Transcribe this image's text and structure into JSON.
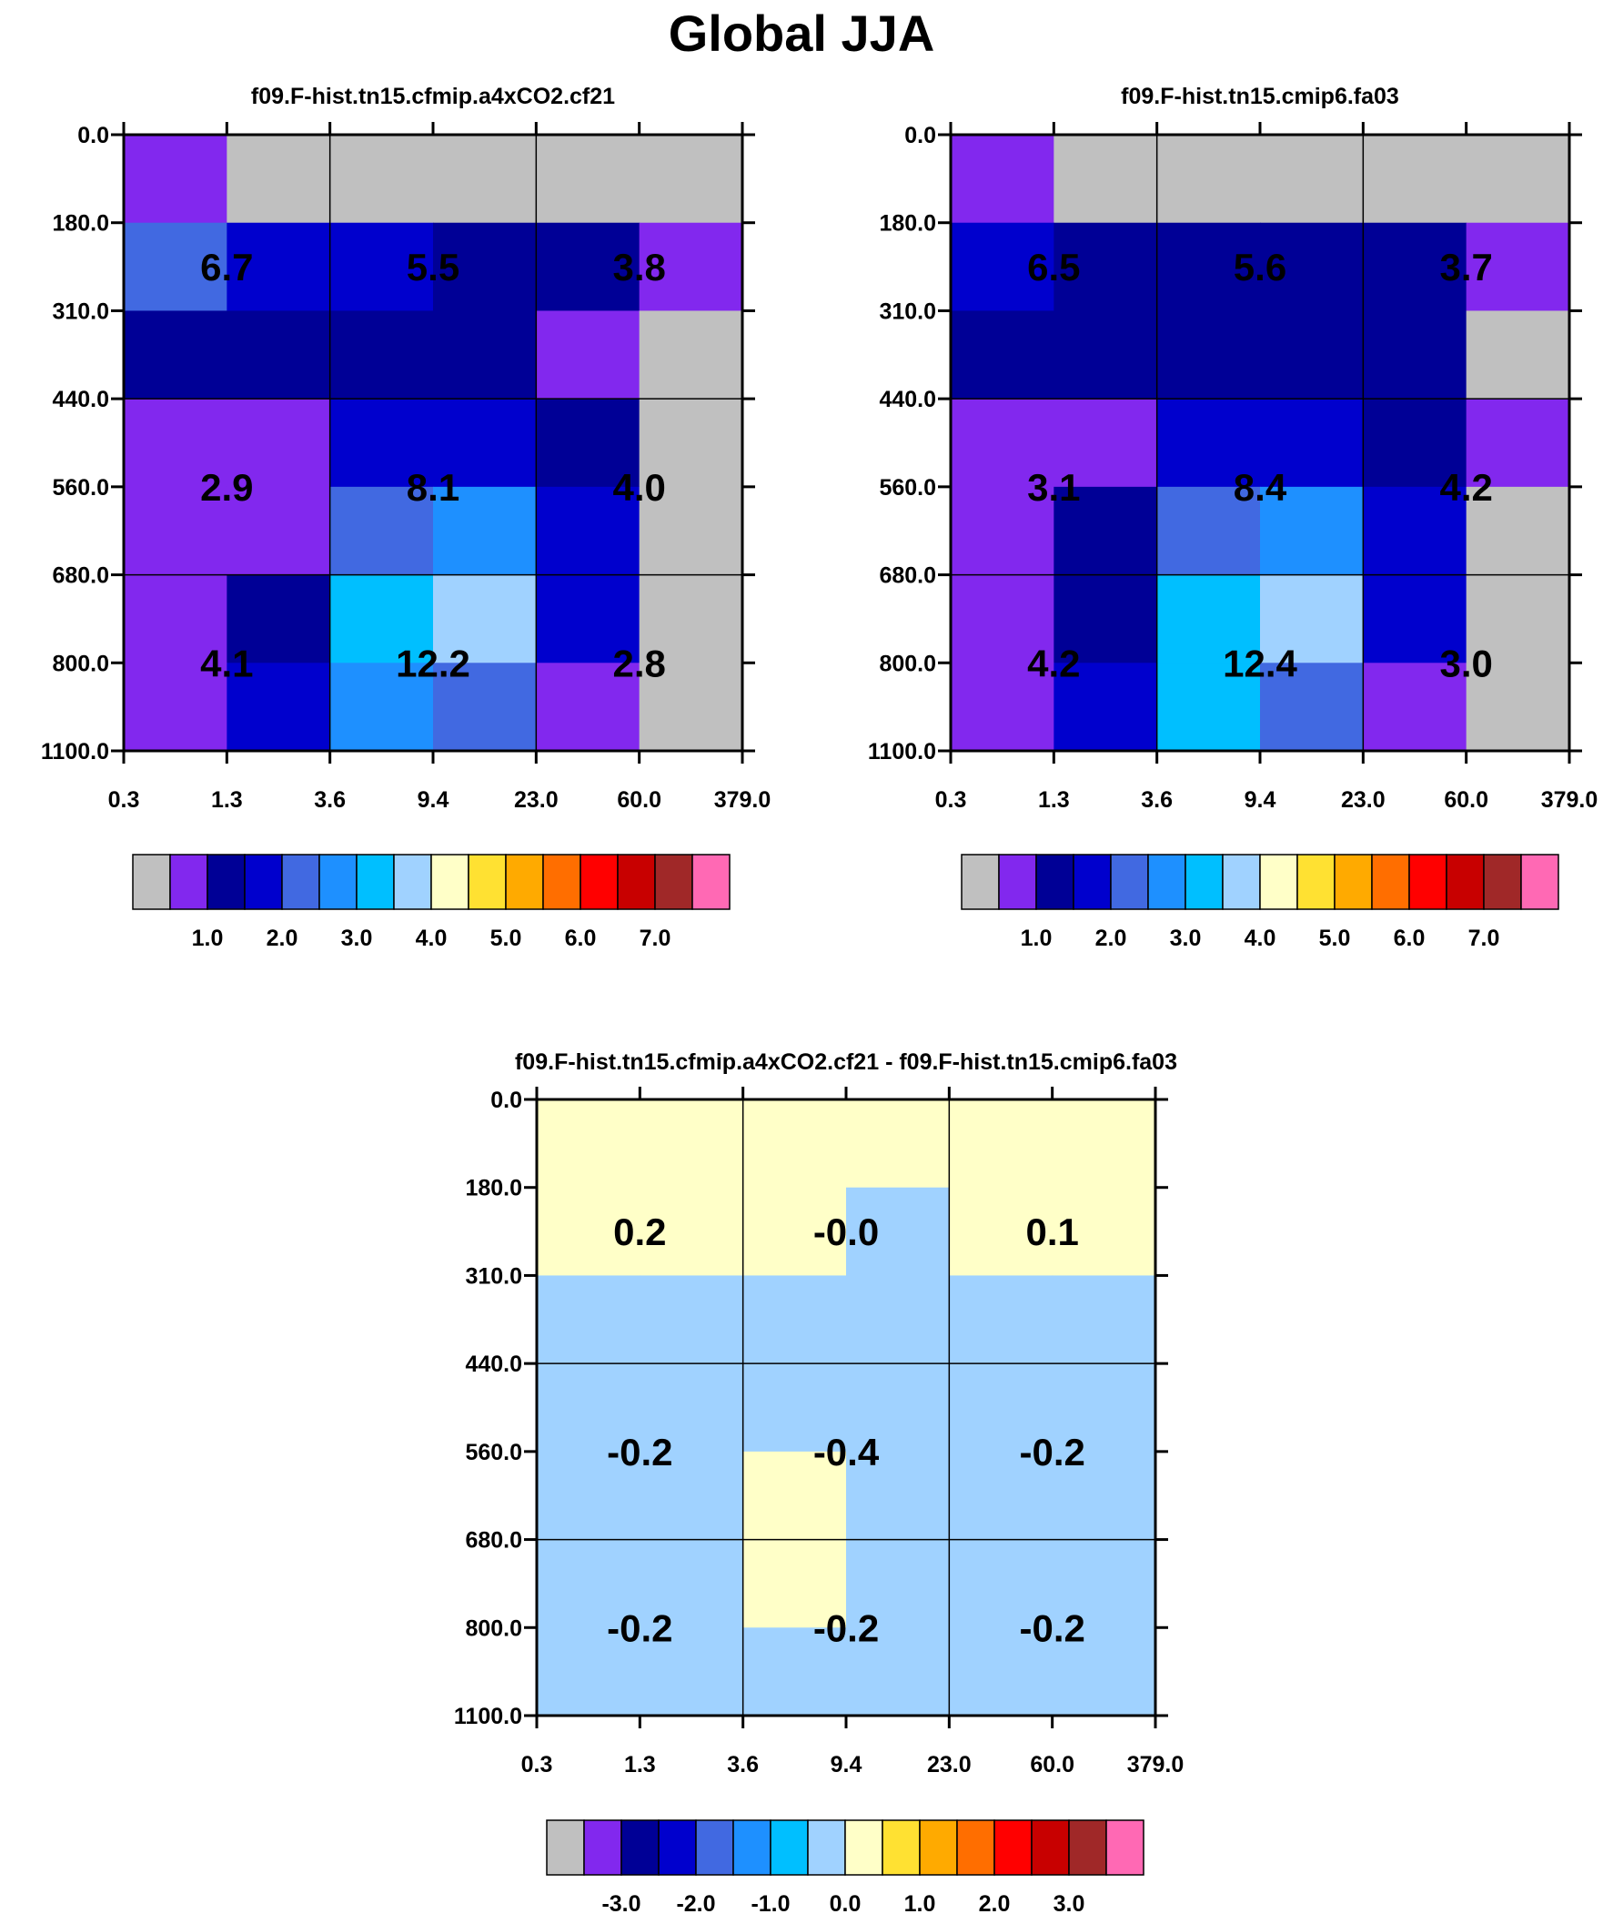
{
  "title": "Global JJA",
  "colors": {
    "grey": "#c0c0c0",
    "violet": "#8228ee",
    "navy": "#000096",
    "blue": "#0000cd",
    "royal": "#4169e1",
    "dodger": "#1e90ff",
    "sky": "#00bfff",
    "pale": "#a0d2ff",
    "cream": "#ffffc8",
    "gold": "#ffe132",
    "orange": "#ffaa00",
    "darkorange": "#ff6e00",
    "red": "#ff0000",
    "crimson": "#c80000",
    "brown": "#a02828",
    "pink": "#ff69b4"
  },
  "colorbars": {
    "absolute": {
      "boxes": [
        "#c0c0c0",
        "#8228ee",
        "#000096",
        "#0000cd",
        "#4169e1",
        "#1e90ff",
        "#00bfff",
        "#a0d2ff",
        "#ffffc8",
        "#ffe132",
        "#ffaa00",
        "#ff6e00",
        "#ff0000",
        "#c80000",
        "#a02828",
        "#ff69b4"
      ],
      "labels": [
        "1.0",
        "2.0",
        "3.0",
        "4.0",
        "5.0",
        "6.0",
        "7.0"
      ],
      "label_after_box": [
        2,
        4,
        6,
        8,
        10,
        12,
        14
      ]
    },
    "difference": {
      "boxes": [
        "#c0c0c0",
        "#8228ee",
        "#000096",
        "#0000cd",
        "#4169e1",
        "#1e90ff",
        "#00bfff",
        "#a0d2ff",
        "#ffffc8",
        "#ffe132",
        "#ffaa00",
        "#ff6e00",
        "#ff0000",
        "#c80000",
        "#a02828",
        "#ff69b4"
      ],
      "labels": [
        "-3.0",
        "-2.0",
        "-1.0",
        "0.0",
        "1.0",
        "2.0",
        "3.0"
      ],
      "label_after_box": [
        2,
        4,
        6,
        8,
        10,
        12,
        14
      ]
    }
  },
  "chart_data": [
    {
      "type": "heatmap",
      "title": "f09.F-hist.tn15.cfmip.a4xCO2.cf21",
      "x_ticks": [
        "0.3",
        "1.3",
        "3.6",
        "9.4",
        "23.0",
        "60.0",
        "379.0"
      ],
      "y_ticks": [
        "0.0",
        "180.0",
        "310.0",
        "440.0",
        "560.0",
        "680.0",
        "800.0",
        "1100.0"
      ],
      "colorbar": "absolute",
      "cells": [
        [
          "violet",
          "grey",
          "grey",
          "grey",
          "grey",
          "grey"
        ],
        [
          "royal",
          "blue",
          "blue",
          "navy",
          "navy",
          "violet"
        ],
        [
          "navy",
          "navy",
          "navy",
          "navy",
          "violet",
          "grey"
        ],
        [
          "violet",
          "violet",
          "blue",
          "blue",
          "navy",
          "grey"
        ],
        [
          "violet",
          "violet",
          "royal",
          "dodger",
          "blue",
          "grey"
        ],
        [
          "violet",
          "navy",
          "sky",
          "pale",
          "blue",
          "grey"
        ],
        [
          "violet",
          "blue",
          "dodger",
          "royal",
          "violet",
          "grey"
        ]
      ],
      "annotations": [
        [
          "6.7",
          "5.5",
          "3.8"
        ],
        [
          "2.9",
          "8.1",
          "4.0"
        ],
        [
          "4.1",
          "12.2",
          "2.8"
        ]
      ]
    },
    {
      "type": "heatmap",
      "title": "f09.F-hist.tn15.cmip6.fa03",
      "x_ticks": [
        "0.3",
        "1.3",
        "3.6",
        "9.4",
        "23.0",
        "60.0",
        "379.0"
      ],
      "y_ticks": [
        "0.0",
        "180.0",
        "310.0",
        "440.0",
        "560.0",
        "680.0",
        "800.0",
        "1100.0"
      ],
      "colorbar": "absolute",
      "cells": [
        [
          "violet",
          "grey",
          "grey",
          "grey",
          "grey",
          "grey"
        ],
        [
          "blue",
          "navy",
          "navy",
          "navy",
          "navy",
          "violet"
        ],
        [
          "navy",
          "navy",
          "navy",
          "navy",
          "navy",
          "grey"
        ],
        [
          "violet",
          "violet",
          "blue",
          "blue",
          "navy",
          "violet"
        ],
        [
          "violet",
          "navy",
          "royal",
          "dodger",
          "blue",
          "grey"
        ],
        [
          "violet",
          "navy",
          "sky",
          "pale",
          "blue",
          "grey"
        ],
        [
          "violet",
          "blue",
          "sky",
          "royal",
          "violet",
          "grey"
        ]
      ],
      "annotations": [
        [
          "6.5",
          "5.6",
          "3.7"
        ],
        [
          "3.1",
          "8.4",
          "4.2"
        ],
        [
          "4.2",
          "12.4",
          "3.0"
        ]
      ]
    },
    {
      "type": "heatmap",
      "title": "f09.F-hist.tn15.cfmip.a4xCO2.cf21 - f09.F-hist.tn15.cmip6.fa03",
      "x_ticks": [
        "0.3",
        "1.3",
        "3.6",
        "9.4",
        "23.0",
        "60.0",
        "379.0"
      ],
      "y_ticks": [
        "0.0",
        "180.0",
        "310.0",
        "440.0",
        "560.0",
        "680.0",
        "800.0",
        "1100.0"
      ],
      "colorbar": "difference",
      "cells": [
        [
          "cream",
          "cream",
          "cream",
          "cream",
          "cream",
          "cream"
        ],
        [
          "cream",
          "cream",
          "cream",
          "pale",
          "cream",
          "cream"
        ],
        [
          "pale",
          "pale",
          "pale",
          "pale",
          "pale",
          "pale"
        ],
        [
          "pale",
          "pale",
          "pale",
          "pale",
          "pale",
          "pale"
        ],
        [
          "pale",
          "pale",
          "cream",
          "pale",
          "pale",
          "pale"
        ],
        [
          "pale",
          "pale",
          "cream",
          "pale",
          "pale",
          "pale"
        ],
        [
          "pale",
          "pale",
          "pale",
          "pale",
          "pale",
          "pale"
        ]
      ],
      "annotations": [
        [
          "0.2",
          "-0.0",
          "0.1"
        ],
        [
          "-0.2",
          "-0.4",
          "-0.2"
        ],
        [
          "-0.2",
          "-0.2",
          "-0.2"
        ]
      ]
    }
  ]
}
